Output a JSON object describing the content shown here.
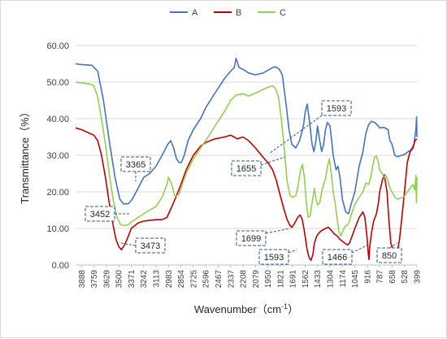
{
  "chart_data": {
    "type": "line",
    "title": "",
    "xlabel": "Wavenumber（cm",
    "xlabel_sup": "-1",
    "xlabel_close": "）",
    "ylabel": "Transmittance（%）",
    "ylim": [
      0,
      60
    ],
    "xlim": [
      3950,
      399
    ],
    "x_reversed": true,
    "legend_position": "top",
    "grid": "horizontal",
    "yticks": [
      "0.00",
      "10.00",
      "20.00",
      "30.00",
      "40.00",
      "50.00",
      "60.00"
    ],
    "xticks": [
      3888,
      3759,
      3629,
      3500,
      3371,
      3242,
      3113,
      2983,
      2854,
      2725,
      2596,
      2467,
      2337,
      2208,
      2079,
      1950,
      1821,
      1691,
      1562,
      1433,
      1304,
      1174,
      1045,
      916,
      787,
      658,
      528,
      399
    ],
    "series": [
      {
        "name": "A",
        "color": "#4472c4",
        "points": [
          [
            3950,
            55
          ],
          [
            3888,
            54.8
          ],
          [
            3780,
            54.6
          ],
          [
            3720,
            53
          ],
          [
            3660,
            45
          ],
          [
            3600,
            34
          ],
          [
            3540,
            24
          ],
          [
            3490,
            18
          ],
          [
            3450,
            16.7
          ],
          [
            3400,
            16.8
          ],
          [
            3360,
            18
          ],
          [
            3300,
            21
          ],
          [
            3240,
            24
          ],
          [
            3180,
            25
          ],
          [
            3113,
            27
          ],
          [
            3050,
            30
          ],
          [
            2990,
            33
          ],
          [
            2960,
            34
          ],
          [
            2930,
            32
          ],
          [
            2900,
            29
          ],
          [
            2870,
            28
          ],
          [
            2850,
            28
          ],
          [
            2820,
            30
          ],
          [
            2780,
            34
          ],
          [
            2725,
            37
          ],
          [
            2650,
            40
          ],
          [
            2596,
            43
          ],
          [
            2500,
            47
          ],
          [
            2400,
            51
          ],
          [
            2337,
            53
          ],
          [
            2300,
            54
          ],
          [
            2280,
            56.5
          ],
          [
            2250,
            54
          ],
          [
            2208,
            53.5
          ],
          [
            2150,
            52.5
          ],
          [
            2079,
            52
          ],
          [
            2000,
            52.5
          ],
          [
            1950,
            53.2
          ],
          [
            1900,
            54
          ],
          [
            1870,
            54.2
          ],
          [
            1830,
            53.5
          ],
          [
            1800,
            52
          ],
          [
            1760,
            44
          ],
          [
            1730,
            37
          ],
          [
            1700,
            33
          ],
          [
            1660,
            32
          ],
          [
            1620,
            34
          ],
          [
            1580,
            38
          ],
          [
            1560,
            42
          ],
          [
            1540,
            44
          ],
          [
            1515,
            39
          ],
          [
            1490,
            33
          ],
          [
            1470,
            31
          ],
          [
            1450,
            34
          ],
          [
            1433,
            38
          ],
          [
            1410,
            34
          ],
          [
            1390,
            31
          ],
          [
            1370,
            33
          ],
          [
            1350,
            37
          ],
          [
            1330,
            39
          ],
          [
            1304,
            38
          ],
          [
            1290,
            35
          ],
          [
            1270,
            30
          ],
          [
            1240,
            26
          ],
          [
            1220,
            27
          ],
          [
            1200,
            24
          ],
          [
            1174,
            18
          ],
          [
            1140,
            14.5
          ],
          [
            1110,
            14
          ],
          [
            1080,
            17
          ],
          [
            1045,
            20
          ],
          [
            1000,
            27
          ],
          [
            960,
            31
          ],
          [
            930,
            36
          ],
          [
            900,
            38.5
          ],
          [
            870,
            39.3
          ],
          [
            840,
            39
          ],
          [
            800,
            38
          ],
          [
            787,
            37.5
          ],
          [
            740,
            37.6
          ],
          [
            700,
            37
          ],
          [
            680,
            34
          ],
          [
            658,
            33
          ],
          [
            630,
            30
          ],
          [
            600,
            29.6
          ],
          [
            560,
            30
          ],
          [
            528,
            30.2
          ],
          [
            490,
            31
          ],
          [
            460,
            31.5
          ],
          [
            430,
            33
          ],
          [
            410,
            37
          ],
          [
            402,
            40.5
          ],
          [
            399,
            35
          ]
        ]
      },
      {
        "name": "B",
        "color": "#c00000",
        "points": [
          [
            3950,
            37.5
          ],
          [
            3888,
            37
          ],
          [
            3820,
            36.2
          ],
          [
            3760,
            35.5
          ],
          [
            3720,
            34
          ],
          [
            3680,
            30
          ],
          [
            3640,
            24
          ],
          [
            3600,
            17
          ],
          [
            3560,
            11
          ],
          [
            3530,
            7
          ],
          [
            3500,
            5
          ],
          [
            3473,
            4.2
          ],
          [
            3440,
            5.5
          ],
          [
            3400,
            8
          ],
          [
            3371,
            10
          ],
          [
            3300,
            11.5
          ],
          [
            3242,
            12
          ],
          [
            3180,
            12.2
          ],
          [
            3113,
            12.4
          ],
          [
            3050,
            12.4
          ],
          [
            3000,
            13
          ],
          [
            2983,
            14
          ],
          [
            2940,
            16.5
          ],
          [
            2900,
            19
          ],
          [
            2854,
            22
          ],
          [
            2800,
            26
          ],
          [
            2725,
            30
          ],
          [
            2650,
            32.5
          ],
          [
            2596,
            33.5
          ],
          [
            2500,
            34.5
          ],
          [
            2400,
            35
          ],
          [
            2337,
            35.5
          ],
          [
            2300,
            35
          ],
          [
            2270,
            34.5
          ],
          [
            2208,
            35
          ],
          [
            2150,
            34
          ],
          [
            2079,
            32
          ],
          [
            2000,
            29.5
          ],
          [
            1950,
            28
          ],
          [
            1900,
            26
          ],
          [
            1860,
            23
          ],
          [
            1821,
            19
          ],
          [
            1780,
            15
          ],
          [
            1750,
            12.5
          ],
          [
            1720,
            10.8
          ],
          [
            1699,
            10.3
          ],
          [
            1670,
            11.5
          ],
          [
            1640,
            13
          ],
          [
            1615,
            13.7
          ],
          [
            1593,
            12.5
          ],
          [
            1575,
            10
          ],
          [
            1560,
            7.5
          ],
          [
            1540,
            4
          ],
          [
            1520,
            2
          ],
          [
            1500,
            1.3
          ],
          [
            1480,
            3
          ],
          [
            1466,
            6
          ],
          [
            1440,
            8
          ],
          [
            1410,
            9
          ],
          [
            1380,
            9.6
          ],
          [
            1350,
            10
          ],
          [
            1320,
            10.3
          ],
          [
            1290,
            9.5
          ],
          [
            1260,
            8.5
          ],
          [
            1230,
            8
          ],
          [
            1200,
            7
          ],
          [
            1174,
            6.5
          ],
          [
            1150,
            6
          ],
          [
            1120,
            5.5
          ],
          [
            1100,
            6
          ],
          [
            1080,
            7.5
          ],
          [
            1045,
            10
          ],
          [
            1000,
            13
          ],
          [
            960,
            14.5
          ],
          [
            940,
            13
          ],
          [
            920,
            8
          ],
          [
            905,
            3
          ],
          [
            898,
            1.5
          ],
          [
            890,
            5
          ],
          [
            870,
            9
          ],
          [
            850,
            12
          ],
          [
            820,
            14
          ],
          [
            800,
            17
          ],
          [
            787,
            20
          ],
          [
            760,
            23
          ],
          [
            740,
            24.7
          ],
          [
            710,
            20
          ],
          [
            690,
            12
          ],
          [
            670,
            6
          ],
          [
            658,
            5
          ],
          [
            640,
            3
          ],
          [
            620,
            2.7
          ],
          [
            600,
            4
          ],
          [
            580,
            7
          ],
          [
            560,
            12
          ],
          [
            528,
            20
          ],
          [
            500,
            28
          ],
          [
            470,
            31
          ],
          [
            440,
            32
          ],
          [
            420,
            34
          ],
          [
            399,
            34.5
          ]
        ]
      },
      {
        "name": "C",
        "color": "#92d050",
        "points": [
          [
            3950,
            50
          ],
          [
            3888,
            49.8
          ],
          [
            3800,
            49.5
          ],
          [
            3760,
            49
          ],
          [
            3720,
            46
          ],
          [
            3680,
            40
          ],
          [
            3640,
            33
          ],
          [
            3600,
            25
          ],
          [
            3560,
            18
          ],
          [
            3520,
            13
          ],
          [
            3480,
            11
          ],
          [
            3440,
            10.8
          ],
          [
            3400,
            11
          ],
          [
            3371,
            11.8
          ],
          [
            3300,
            13
          ],
          [
            3242,
            14
          ],
          [
            3180,
            15
          ],
          [
            3113,
            16
          ],
          [
            3050,
            18.5
          ],
          [
            3000,
            22
          ],
          [
            2983,
            24
          ],
          [
            2950,
            22
          ],
          [
            2920,
            19
          ],
          [
            2900,
            18.8
          ],
          [
            2870,
            19.5
          ],
          [
            2854,
            21
          ],
          [
            2800,
            25
          ],
          [
            2725,
            29
          ],
          [
            2650,
            32
          ],
          [
            2596,
            34
          ],
          [
            2500,
            38
          ],
          [
            2400,
            42
          ],
          [
            2337,
            45
          ],
          [
            2280,
            46.5
          ],
          [
            2208,
            46.8
          ],
          [
            2150,
            46.2
          ],
          [
            2079,
            47
          ],
          [
            2000,
            48
          ],
          [
            1950,
            48.6
          ],
          [
            1900,
            49
          ],
          [
            1870,
            48.2
          ],
          [
            1840,
            46
          ],
          [
            1810,
            40
          ],
          [
            1780,
            32
          ],
          [
            1750,
            23
          ],
          [
            1720,
            19
          ],
          [
            1691,
            18.5
          ],
          [
            1660,
            19
          ],
          [
            1640,
            21
          ],
          [
            1610,
            26
          ],
          [
            1590,
            27.5
          ],
          [
            1570,
            24
          ],
          [
            1550,
            17
          ],
          [
            1530,
            13
          ],
          [
            1510,
            13.5
          ],
          [
            1490,
            17
          ],
          [
            1466,
            21
          ],
          [
            1450,
            18
          ],
          [
            1433,
            16.5
          ],
          [
            1410,
            17
          ],
          [
            1390,
            20
          ],
          [
            1370,
            22
          ],
          [
            1350,
            23.5
          ],
          [
            1330,
            27
          ],
          [
            1310,
            29
          ],
          [
            1290,
            25
          ],
          [
            1270,
            20
          ],
          [
            1250,
            17
          ],
          [
            1230,
            13
          ],
          [
            1210,
            9
          ],
          [
            1190,
            8
          ],
          [
            1174,
            9
          ],
          [
            1150,
            10.5
          ],
          [
            1120,
            11
          ],
          [
            1100,
            12
          ],
          [
            1080,
            14
          ],
          [
            1045,
            16.5
          ],
          [
            1000,
            18.5
          ],
          [
            960,
            20
          ],
          [
            930,
            22.5
          ],
          [
            900,
            22
          ],
          [
            880,
            24
          ],
          [
            860,
            27
          ],
          [
            840,
            29.5
          ],
          [
            820,
            29.8
          ],
          [
            800,
            28
          ],
          [
            787,
            26
          ],
          [
            760,
            25
          ],
          [
            740,
            24
          ],
          [
            720,
            24.5
          ],
          [
            700,
            23
          ],
          [
            680,
            21
          ],
          [
            658,
            20
          ],
          [
            630,
            18.5
          ],
          [
            600,
            18
          ],
          [
            560,
            18.4
          ],
          [
            528,
            18.8
          ],
          [
            500,
            20
          ],
          [
            470,
            21
          ],
          [
            440,
            22
          ],
          [
            420,
            20.5
          ],
          [
            410,
            24.5
          ],
          [
            404,
            17
          ],
          [
            399,
            24
          ]
        ]
      }
    ],
    "annotations": [
      {
        "label": "3365"
      },
      {
        "label": "3452"
      },
      {
        "label": "3473"
      },
      {
        "label": "1593"
      },
      {
        "label": "1655"
      },
      {
        "label": "1699"
      },
      {
        "label": "1593"
      },
      {
        "label": "1466"
      },
      {
        "label": "850"
      }
    ]
  }
}
